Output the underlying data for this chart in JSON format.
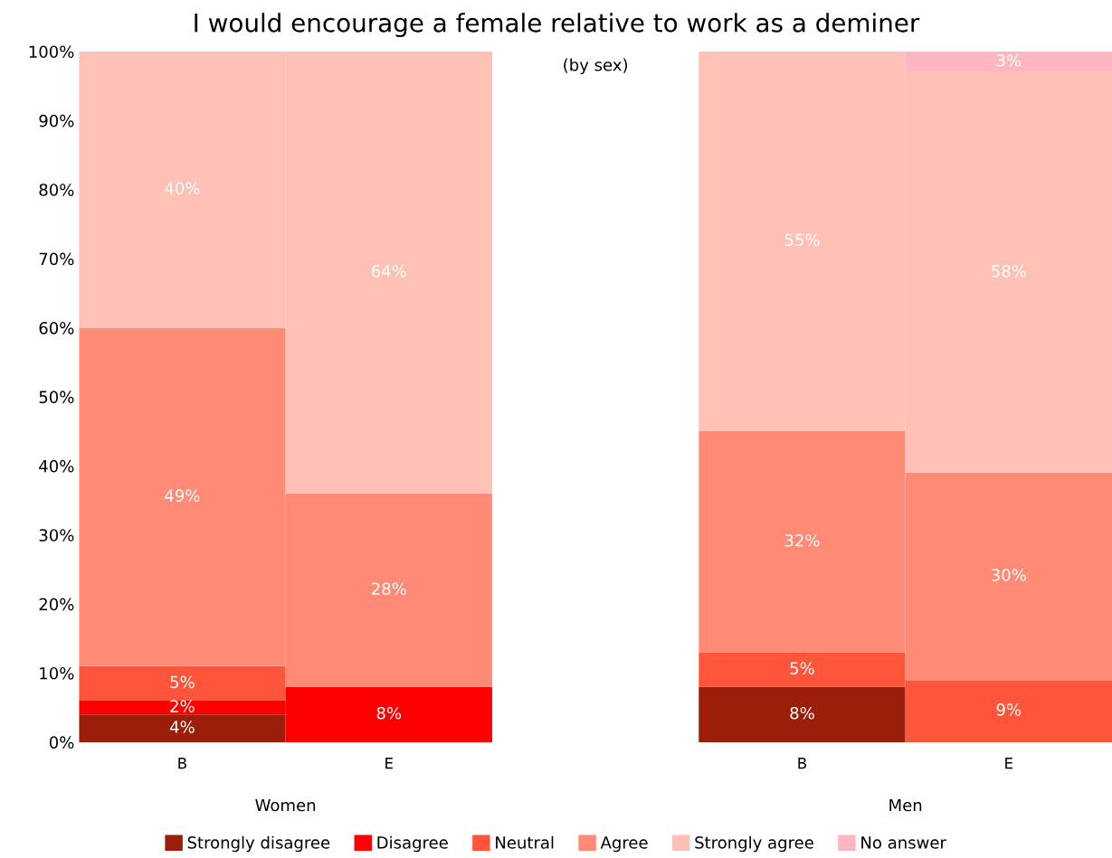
{
  "chart_data": {
    "type": "bar",
    "stacked": true,
    "title": "I would encourage a female relative to work as a deminer",
    "subtitle": "(by sex)",
    "categories": [
      "B",
      "E",
      null,
      "B",
      "E"
    ],
    "series": [
      {
        "name": "Strongly disagree",
        "color": "#9a1e0a",
        "values": [
          4,
          0,
          null,
          8,
          0
        ],
        "value_labels": [
          "4%",
          null,
          null,
          "8%",
          null
        ]
      },
      {
        "name": "Disagree",
        "color": "#ff0000",
        "values": [
          2,
          8,
          null,
          0,
          0
        ],
        "value_labels": [
          "2%",
          "8%",
          null,
          null,
          null
        ]
      },
      {
        "name": "Neutral",
        "color": "#ff553a",
        "values": [
          5,
          0,
          null,
          5,
          9
        ],
        "value_labels": [
          "5%",
          null,
          null,
          "5%",
          "9%"
        ]
      },
      {
        "name": "Agree",
        "color": "#ff8a75",
        "values": [
          49,
          28,
          null,
          32,
          30
        ],
        "value_labels": [
          "49%",
          "28%",
          null,
          "32%",
          "30%"
        ]
      },
      {
        "name": "Strongly agree",
        "color": "#ffc0b5",
        "values": [
          40,
          64,
          null,
          55,
          58
        ],
        "value_labels": [
          "40%",
          "64%",
          null,
          "55%",
          "58%"
        ]
      },
      {
        "name": "No answer",
        "color": "#ffb6c1",
        "values": [
          0,
          0,
          null,
          0,
          3
        ],
        "value_labels": [
          null,
          null,
          null,
          null,
          "3%"
        ]
      }
    ],
    "ylim": [
      0,
      100
    ],
    "yticks": [
      {
        "value": 0,
        "label": "0%"
      },
      {
        "value": 10,
        "label": "10%"
      },
      {
        "value": 20,
        "label": "20%"
      },
      {
        "value": 30,
        "label": "30%"
      },
      {
        "value": 40,
        "label": "40%"
      },
      {
        "value": 50,
        "label": "50%"
      },
      {
        "value": 60,
        "label": "60%"
      },
      {
        "value": 70,
        "label": "70%"
      },
      {
        "value": 80,
        "label": "80%"
      },
      {
        "value": 90,
        "label": "90%"
      },
      {
        "value": 100,
        "label": "100%"
      }
    ],
    "annotations": [
      "Women",
      "Men"
    ],
    "legend": "bottom",
    "grid": false
  }
}
